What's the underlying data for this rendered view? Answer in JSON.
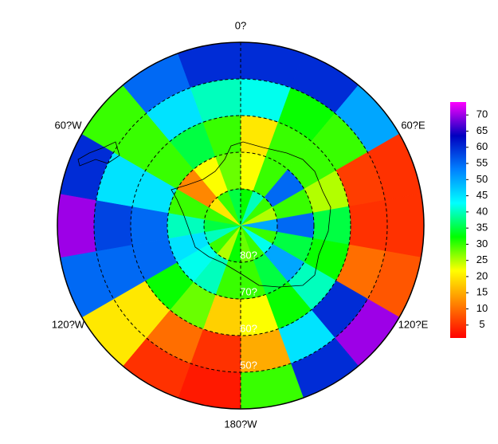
{
  "chart_data": {
    "type": "polar_heatmap",
    "lon_edges": [
      0,
      20,
      40,
      60,
      80,
      100,
      120,
      140,
      160,
      180,
      200,
      220,
      240,
      260,
      280,
      300,
      320,
      340,
      360
    ],
    "lat_edges": [
      40,
      50,
      60,
      70,
      80,
      90
    ],
    "values": [
      [
        60,
        60,
        50,
        5,
        5,
        8,
        70,
        60,
        30,
        3,
        5,
        20,
        55,
        70,
        60,
        30,
        55,
        60
      ],
      [
        42,
        32,
        30,
        6,
        5,
        10,
        60,
        45,
        15,
        5,
        10,
        20,
        55,
        58,
        45,
        30,
        45,
        40
      ],
      [
        20,
        30,
        30,
        25,
        35,
        32,
        40,
        32,
        22,
        18,
        28,
        32,
        55,
        55,
        45,
        30,
        35,
        30
      ],
      [
        22,
        30,
        55,
        30,
        55,
        35,
        50,
        35,
        30,
        30,
        40,
        42,
        45,
        40,
        30,
        12,
        22,
        28
      ],
      [
        32,
        40,
        30,
        25,
        50,
        30,
        42,
        30,
        28,
        32,
        25,
        30,
        40,
        35,
        30,
        20,
        30,
        35
      ]
    ],
    "lon_ticks": [
      {
        "value": 0,
        "label": "0?"
      },
      {
        "value": 60,
        "label": "60?E"
      },
      {
        "value": 120,
        "label": "120?E"
      },
      {
        "value": 180,
        "label": "180?W"
      },
      {
        "value": 240,
        "label": "120?W"
      },
      {
        "value": 300,
        "label": "60?W"
      }
    ],
    "lat_ticks": [
      {
        "value": 80,
        "label": "80?"
      },
      {
        "value": 70,
        "label": "70?"
      },
      {
        "value": 60,
        "label": "60?"
      },
      {
        "value": 50,
        "label": "50?"
      }
    ],
    "clim": [
      1,
      74
    ],
    "cticks": [
      5,
      10,
      15,
      20,
      25,
      30,
      35,
      40,
      45,
      50,
      55,
      60,
      65,
      70
    ],
    "colors": [
      "#ff0000",
      "#ff8000",
      "#ffff00",
      "#00ff00",
      "#00ffff",
      "#0080ff",
      "#0000c0",
      "#ff00ff"
    ]
  }
}
